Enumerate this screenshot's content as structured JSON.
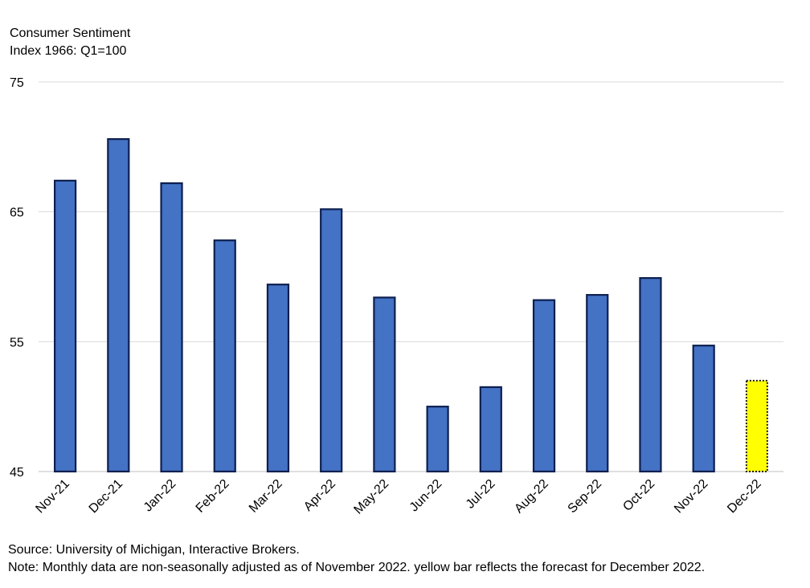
{
  "chart_data": {
    "type": "bar",
    "ylabel_lines": [
      "Consumer Sentiment",
      "Index 1966: Q1=100"
    ],
    "categories": [
      "Nov-21",
      "Dec-21",
      "Jan-22",
      "Feb-22",
      "Mar-22",
      "Apr-22",
      "May-22",
      "Jun-22",
      "Jul-22",
      "Aug-22",
      "Sep-22",
      "Oct-22",
      "Nov-22",
      "Dec-22"
    ],
    "values": [
      67.4,
      70.6,
      67.2,
      62.8,
      59.4,
      65.2,
      58.4,
      50.0,
      51.5,
      58.2,
      58.6,
      59.9,
      54.7,
      52.0
    ],
    "forecast_index": 13,
    "ylim": [
      45,
      75
    ],
    "yticks": [
      45,
      55,
      65,
      75
    ],
    "grid": true,
    "colors": {
      "bar_fill": "#4472c4",
      "bar_edge": "#0d1f4f",
      "forecast_fill": "#ffff00",
      "forecast_edge": "#1a1a1a",
      "grid": "#d9d9d9"
    }
  },
  "footer": {
    "source": "Source: University of Michigan, Interactive Brokers.",
    "note": "Note: Monthly data are non-seasonally adjusted as of November 2022. yellow bar reflects the forecast for December 2022."
  }
}
